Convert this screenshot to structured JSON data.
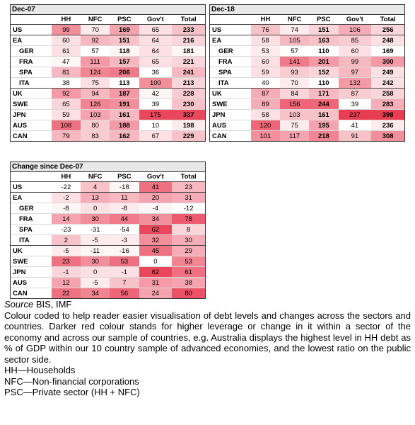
{
  "tables": [
    {
      "title": "Dec-07",
      "headers": [
        "",
        "HH",
        "NFC",
        "PSC",
        "Gov't",
        "Total"
      ],
      "rows": [
        {
          "label": "US",
          "values": [
            "99",
            "70",
            "169",
            "65",
            "233"
          ],
          "intensity": [
            0.55,
            0.1,
            0.45,
            0.15,
            0.3
          ]
        },
        {
          "label": "EA",
          "values": [
            "60",
            "92",
            "151",
            "64",
            "216"
          ],
          "intensity": [
            0.15,
            0.35,
            0.3,
            0.15,
            0.2
          ]
        },
        {
          "label": "GER",
          "values": [
            "61",
            "57",
            "118",
            "64",
            "181"
          ],
          "intensity": [
            0.15,
            0.0,
            0.05,
            0.15,
            0.05
          ],
          "sub": true
        },
        {
          "label": "FRA",
          "values": [
            "47",
            "111",
            "157",
            "65",
            "221"
          ],
          "intensity": [
            0.05,
            0.5,
            0.35,
            0.15,
            0.2
          ],
          "sub": true
        },
        {
          "label": "SPA",
          "values": [
            "81",
            "124",
            "206",
            "36",
            "241"
          ],
          "intensity": [
            0.35,
            0.6,
            0.65,
            0.0,
            0.35
          ],
          "sub": true
        },
        {
          "label": "ITA",
          "values": [
            "38",
            "75",
            "113",
            "100",
            "213"
          ],
          "intensity": [
            0.0,
            0.15,
            0.0,
            0.55,
            0.2
          ],
          "sub": true
        },
        {
          "label": "UK",
          "values": [
            "92",
            "94",
            "187",
            "42",
            "228"
          ],
          "intensity": [
            0.5,
            0.35,
            0.5,
            0.05,
            0.25
          ]
        },
        {
          "label": "SWE",
          "values": [
            "65",
            "126",
            "191",
            "39",
            "230"
          ],
          "intensity": [
            0.2,
            0.6,
            0.55,
            0.0,
            0.3
          ]
        },
        {
          "label": "JPN",
          "values": [
            "59",
            "103",
            "161",
            "175",
            "337"
          ],
          "intensity": [
            0.15,
            0.45,
            0.35,
            0.9,
            0.9
          ]
        },
        {
          "label": "AUS",
          "values": [
            "108",
            "80",
            "188",
            "10",
            "198"
          ],
          "intensity": [
            0.7,
            0.25,
            0.5,
            0.0,
            0.1
          ]
        },
        {
          "label": "CAN",
          "values": [
            "79",
            "83",
            "162",
            "67",
            "229"
          ],
          "intensity": [
            0.35,
            0.25,
            0.35,
            0.15,
            0.3
          ]
        }
      ]
    },
    {
      "title": "Dec-18",
      "headers": [
        "",
        "HH",
        "NFC",
        "PSC",
        "Gov't",
        "Total"
      ],
      "rows": [
        {
          "label": "US",
          "values": [
            "76",
            "74",
            "151",
            "106",
            "256"
          ],
          "intensity": [
            0.3,
            0.1,
            0.2,
            0.4,
            0.2
          ]
        },
        {
          "label": "EA",
          "values": [
            "58",
            "105",
            "163",
            "85",
            "248"
          ],
          "intensity": [
            0.15,
            0.35,
            0.3,
            0.25,
            0.15
          ]
        },
        {
          "label": "GER",
          "values": [
            "53",
            "57",
            "110",
            "60",
            "169"
          ],
          "intensity": [
            0.1,
            0.0,
            0.0,
            0.15,
            0.0
          ],
          "sub": true
        },
        {
          "label": "FRA",
          "values": [
            "60",
            "141",
            "201",
            "99",
            "300"
          ],
          "intensity": [
            0.15,
            0.65,
            0.5,
            0.35,
            0.5
          ],
          "sub": true
        },
        {
          "label": "SPA",
          "values": [
            "59",
            "93",
            "152",
            "97",
            "249"
          ],
          "intensity": [
            0.15,
            0.25,
            0.2,
            0.35,
            0.15
          ],
          "sub": true
        },
        {
          "label": "ITA",
          "values": [
            "40",
            "70",
            "110",
            "132",
            "242"
          ],
          "intensity": [
            0.0,
            0.1,
            0.0,
            0.5,
            0.15
          ],
          "sub": true
        },
        {
          "label": "UK",
          "values": [
            "87",
            "84",
            "171",
            "87",
            "258"
          ],
          "intensity": [
            0.4,
            0.2,
            0.35,
            0.25,
            0.2
          ]
        },
        {
          "label": "SWE",
          "values": [
            "89",
            "156",
            "244",
            "39",
            "283"
          ],
          "intensity": [
            0.4,
            0.75,
            0.75,
            0.0,
            0.4
          ]
        },
        {
          "label": "JPN",
          "values": [
            "58",
            "103",
            "161",
            "237",
            "398"
          ],
          "intensity": [
            0.15,
            0.3,
            0.3,
            0.95,
            0.95
          ]
        },
        {
          "label": "AUS",
          "values": [
            "120",
            "75",
            "195",
            "41",
            "236"
          ],
          "intensity": [
            0.75,
            0.1,
            0.45,
            0.0,
            0.1
          ]
        },
        {
          "label": "CAN",
          "values": [
            "101",
            "117",
            "218",
            "91",
            "308"
          ],
          "intensity": [
            0.55,
            0.45,
            0.6,
            0.3,
            0.55
          ]
        }
      ]
    },
    {
      "title": "Change since Dec-07",
      "headers": [
        "",
        "HH",
        "NFC",
        "PSC",
        "Gov't",
        "Total"
      ],
      "rows": [
        {
          "label": "US",
          "values": [
            "-22",
            "4",
            "-18",
            "41",
            "23"
          ],
          "intensity": [
            0.0,
            0.3,
            0.05,
            0.7,
            0.35
          ]
        },
        {
          "label": "EA",
          "values": [
            "-2",
            "13",
            "11",
            "20",
            "31"
          ],
          "intensity": [
            0.15,
            0.4,
            0.35,
            0.45,
            0.4
          ]
        },
        {
          "label": "GER",
          "values": [
            "-8",
            "0",
            "-8",
            "-4",
            "-12"
          ],
          "intensity": [
            0.05,
            0.15,
            0.1,
            0.05,
            0.0
          ],
          "sub": true
        },
        {
          "label": "FRA",
          "values": [
            "14",
            "30",
            "44",
            "34",
            "78"
          ],
          "intensity": [
            0.45,
            0.55,
            0.65,
            0.55,
            0.8
          ],
          "sub": true
        },
        {
          "label": "SPA",
          "values": [
            "-23",
            "-31",
            "-54",
            "62",
            "8"
          ],
          "intensity": [
            0.0,
            0.0,
            0.0,
            0.9,
            0.2
          ],
          "sub": true
        },
        {
          "label": "ITA",
          "values": [
            "2",
            "-5",
            "-3",
            "32",
            "30"
          ],
          "intensity": [
            0.3,
            0.1,
            0.1,
            0.55,
            0.4
          ],
          "sub": true
        },
        {
          "label": "UK",
          "values": [
            "-5",
            "-11",
            "-16",
            "45",
            "29"
          ],
          "intensity": [
            0.1,
            0.05,
            0.05,
            0.7,
            0.4
          ]
        },
        {
          "label": "SWE",
          "values": [
            "23",
            "30",
            "53",
            "0",
            "53"
          ],
          "intensity": [
            0.7,
            0.55,
            0.7,
            0.0,
            0.6
          ]
        },
        {
          "label": "JPN",
          "values": [
            "-1",
            "0",
            "-1",
            "62",
            "61"
          ],
          "intensity": [
            0.2,
            0.15,
            0.15,
            0.9,
            0.7
          ]
        },
        {
          "label": "AUS",
          "values": [
            "12",
            "-5",
            "7",
            "31",
            "38"
          ],
          "intensity": [
            0.45,
            0.1,
            0.3,
            0.5,
            0.45
          ]
        },
        {
          "label": "CAN",
          "values": [
            "22",
            "34",
            "56",
            "24",
            "80"
          ],
          "intensity": [
            0.7,
            0.6,
            0.75,
            0.45,
            0.85
          ]
        }
      ]
    }
  ],
  "colors": {
    "low": "#ffffff",
    "high": "#e8334a"
  },
  "footnotes": {
    "source_label": "Source",
    "source_value": " BIS, IMF",
    "description": "Colour coded to help reader easier visualisation of debt levels and changes across the sectors and countries. Darker red colour stands for higher leverage or change in it within a sector of the economy and across our sample of countries, e.g. Australia displays the highest level in HH debt as % of GDP within our 10 country sample of advanced economies, and the lowest ratio on the public sector side.",
    "abbrev_hh": "HH—Households",
    "abbrev_nfc": "NFC—Non-financial corporations",
    "abbrev_psc": "PSC—Private sector (HH + NFC)"
  }
}
